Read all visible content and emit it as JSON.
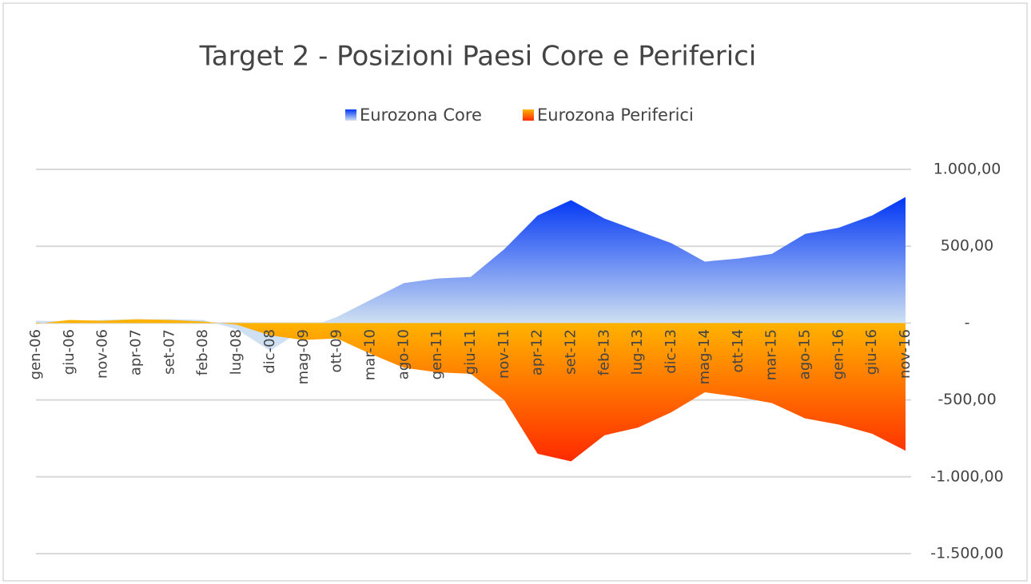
{
  "chart_data": {
    "type": "area",
    "title": "Target 2 - Posizioni Paesi Core e Periferici",
    "categories": [
      "gen-06",
      "giu-06",
      "nov-06",
      "apr-07",
      "set-07",
      "feb-08",
      "lug-08",
      "dic-08",
      "mag-09",
      "ott-09",
      "mar-10",
      "ago-10",
      "gen-11",
      "giu-11",
      "nov-11",
      "apr-12",
      "set-12",
      "feb-13",
      "lug-13",
      "dic-13",
      "mag-14",
      "ott-14",
      "mar-15",
      "ago-15",
      "gen-16",
      "giu-16",
      "nov-16"
    ],
    "series": [
      {
        "name": "Eurozona Core",
        "color": "#0036f5",
        "values": [
          15,
          10,
          20,
          25,
          25,
          20,
          -40,
          -180,
          -40,
          40,
          150,
          260,
          290,
          300,
          480,
          700,
          800,
          680,
          600,
          520,
          400,
          420,
          450,
          580,
          620,
          700,
          820
        ]
      },
      {
        "name": "Eurozona Periferici",
        "color": "#ff2a00",
        "values": [
          -5,
          20,
          15,
          25,
          20,
          10,
          -10,
          -80,
          -110,
          -100,
          -200,
          -290,
          -320,
          -330,
          -500,
          -850,
          -900,
          -730,
          -680,
          -580,
          -450,
          -480,
          -520,
          -620,
          -660,
          -720,
          -830
        ]
      }
    ],
    "ylim": [
      -1500,
      1000
    ],
    "yticks": [
      {
        "value": 1000,
        "label": "1.000,00"
      },
      {
        "value": 500,
        "label": "500,00"
      },
      {
        "value": 0,
        "label": "-"
      },
      {
        "value": -500,
        "label": "-500,00"
      },
      {
        "value": -1000,
        "label": "-1.000,00"
      },
      {
        "value": -1500,
        "label": "-1.500,00"
      }
    ],
    "grid": true,
    "legend": "top"
  }
}
